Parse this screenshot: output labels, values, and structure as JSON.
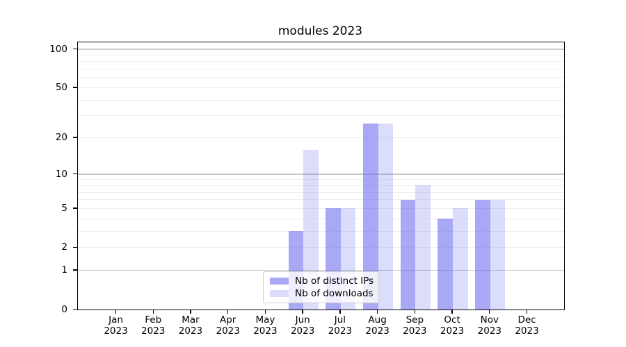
{
  "chart_data": {
    "type": "bar",
    "title": "modules 2023",
    "categories": [
      "Jan",
      "Feb",
      "Mar",
      "Apr",
      "May",
      "Jun",
      "Jul",
      "Aug",
      "Sep",
      "Oct",
      "Nov",
      "Dec"
    ],
    "x_tick_year": "2023",
    "series": [
      {
        "name": "Nb of distinct IPs",
        "color": "rgba(102,102,238,0.57)",
        "values": [
          0,
          0,
          0,
          0,
          0,
          3,
          5,
          26,
          6,
          4,
          6,
          0
        ]
      },
      {
        "name": "Nb of downloads",
        "color": "rgba(102,102,238,0.23)",
        "values": [
          0,
          0,
          0,
          0,
          0,
          16,
          5,
          26,
          8,
          5,
          6,
          0
        ]
      }
    ],
    "xlabel": "",
    "ylabel": "",
    "yscale": "log1p",
    "ylim": [
      0,
      113
    ],
    "y_tick_values": [
      0,
      1,
      2,
      5,
      10,
      20,
      50,
      100
    ],
    "y_tick_labels": [
      "0",
      "1",
      "2",
      "5",
      "10",
      "20",
      "50",
      "100"
    ],
    "grid": true,
    "grid_minor_values": [
      2,
      3,
      4,
      5,
      6,
      7,
      8,
      9,
      20,
      30,
      40,
      50,
      60,
      70,
      80,
      90
    ],
    "grid_major_values": [
      1,
      10,
      100
    ],
    "legend_position": "lower center"
  },
  "colors": {
    "background": "#ffffff",
    "axis": "#000000",
    "grid_minor": "#eeeeee",
    "grid_major": "#c9c9c9",
    "legend_border": "#cccccc",
    "text": "#000000"
  }
}
